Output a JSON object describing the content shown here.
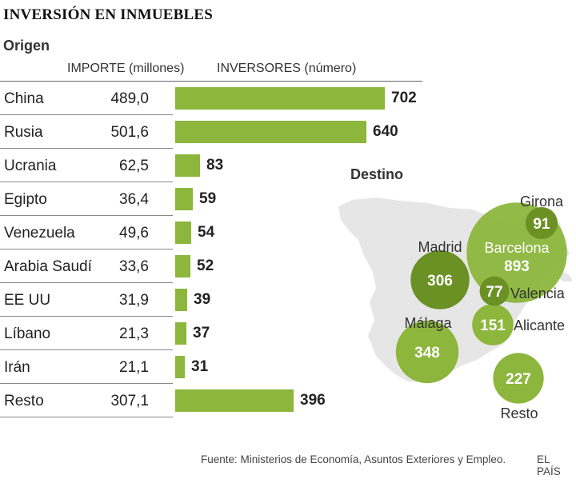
{
  "title": "INVERSIÓN EN INMUEBLES",
  "origin": {
    "heading": "Origen",
    "col_amount": "IMPORTE (millones)",
    "col_investors": "INVERSORES (número)"
  },
  "colors": {
    "bar": "#8cb63c",
    "bubble_light": "#8cb63c",
    "bubble_dark": "#6b9124",
    "map": "#e8e8e8"
  },
  "chart_data": [
    {
      "type": "bar",
      "orientation": "horizontal",
      "categories": [
        "China",
        "Rusia",
        "Ucrania",
        "Egipto",
        "Venezuela",
        "Arabia Saudí",
        "EE UU",
        "Líbano",
        "Irán",
        "Resto"
      ],
      "importe_millones": [
        "489,0",
        "501,6",
        "62,5",
        "36,4",
        "49,6",
        "33,6",
        "31,9",
        "21,3",
        "21,1",
        "307,1"
      ],
      "values": [
        702,
        640,
        83,
        59,
        54,
        52,
        39,
        37,
        31,
        396
      ]
    },
    {
      "type": "scatter",
      "subtype": "bubble-map",
      "title": "Destino",
      "points": [
        {
          "label": "Girona",
          "value": 91,
          "tone": "dark"
        },
        {
          "label": "Barcelona",
          "value": 893,
          "tone": "light"
        },
        {
          "label": "Madrid",
          "value": 306,
          "tone": "dark"
        },
        {
          "label": "Valencia",
          "value": 77,
          "tone": "dark"
        },
        {
          "label": "Alicante",
          "value": 151,
          "tone": "light"
        },
        {
          "label": "Málaga",
          "value": 348,
          "tone": "light"
        },
        {
          "label": "Resto",
          "value": 227,
          "tone": "light"
        }
      ]
    }
  ],
  "footer": {
    "source": "Fuente: Ministerios de Economía, Asuntos Exteriores y Empleo.",
    "brand": "EL PAÍS"
  }
}
